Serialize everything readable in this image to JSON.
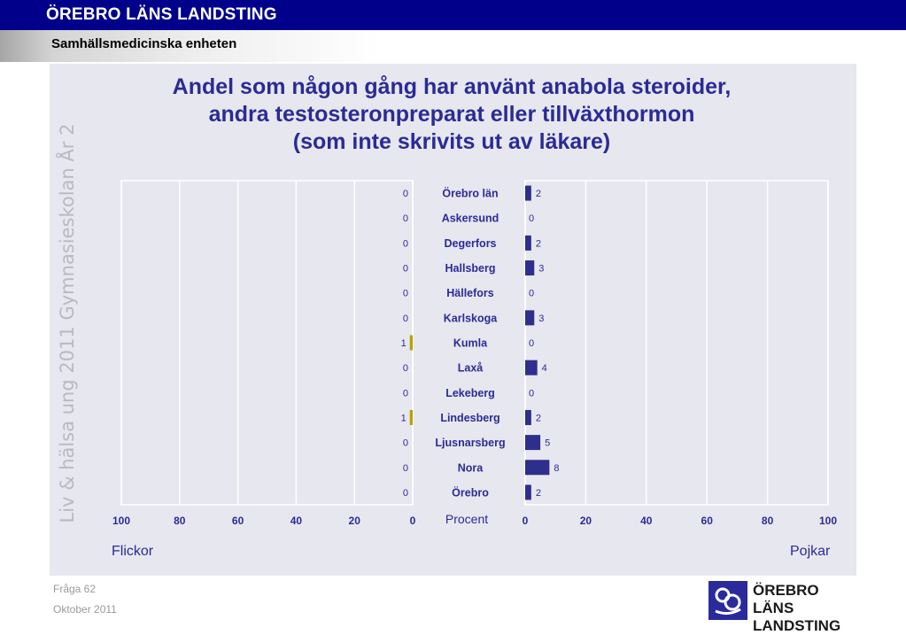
{
  "header": {
    "org_title": "ÖREBRO LÄNS LANDSTING",
    "unit_title": "Samhällsmedicinska enheten"
  },
  "side_text": "Liv & hälsa ung 2011 Gymnasieskolan År 2",
  "footer": {
    "question": "Fråga 62",
    "date": "Oktober 2011"
  },
  "logo": {
    "line1": "ÖREBRO LÄNS",
    "line2": "LANDSTING",
    "icon": "landsting-logo-icon"
  },
  "colors": {
    "header_bg": "#00008b",
    "title": "#2b2b96",
    "girls_bar": "#b8a200",
    "boys_bar": "#2e2e8c",
    "panel_bg": "#e7e7ef"
  },
  "chart_data": {
    "type": "bar",
    "orientation": "horizontal-butterfly",
    "title_lines": [
      "Andel som någon gång har använt anabola steroider,",
      "andra testosteronpreparat eller tillväxthormon",
      "(som inte skrivits ut av läkare)"
    ],
    "categories": [
      "Örebro län",
      "Askersund",
      "Degerfors",
      "Hallsberg",
      "Hällefors",
      "Karlskoga",
      "Kumla",
      "Laxå",
      "Lekeberg",
      "Lindesberg",
      "Ljusnarsberg",
      "Nora",
      "Örebro"
    ],
    "series": [
      {
        "name": "Flickor",
        "values": [
          0,
          0,
          0,
          0,
          0,
          0,
          1,
          0,
          0,
          1,
          0,
          0,
          0
        ]
      },
      {
        "name": "Pojkar",
        "values": [
          2,
          0,
          2,
          3,
          0,
          3,
          0,
          4,
          0,
          2,
          5,
          8,
          2
        ]
      }
    ],
    "left_label": "Flickor",
    "right_label": "Pojkar",
    "xlabel": "Procent",
    "xlim": [
      0,
      100
    ],
    "left_ticks": [
      100,
      80,
      60,
      40,
      20,
      0
    ],
    "right_ticks": [
      0,
      20,
      40,
      60,
      80,
      100
    ],
    "grid": true
  }
}
